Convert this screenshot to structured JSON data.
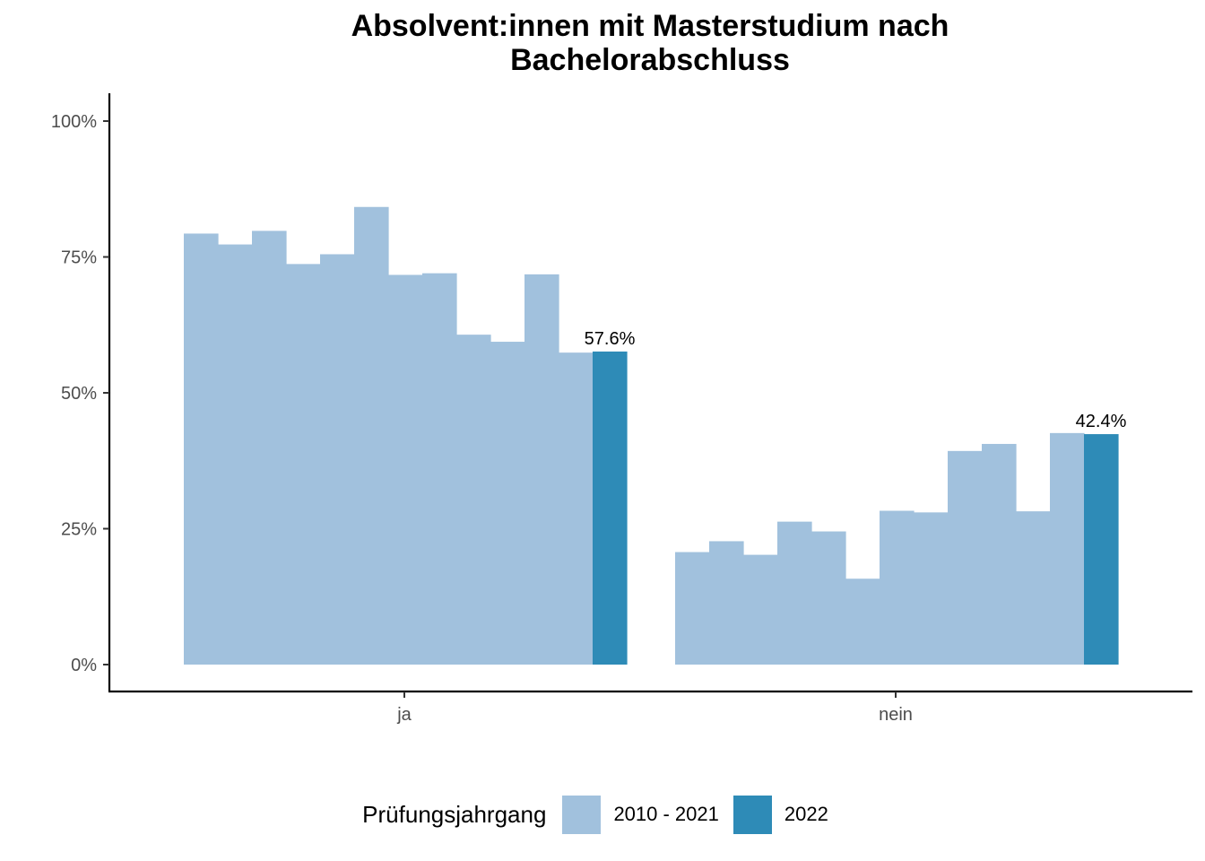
{
  "chart_data": {
    "type": "bar",
    "title_lines": [
      "Absolvent:innen mit Masterstudium nach",
      "Bachelorabschluss"
    ],
    "categories": [
      "ja",
      "nein"
    ],
    "ylim": [
      0,
      100
    ],
    "y_ticks": [
      0,
      25,
      50,
      75,
      100
    ],
    "y_tick_labels": [
      "0%",
      "25%",
      "50%",
      "75%",
      "100%"
    ],
    "series": [
      {
        "name": "2010 - 2021",
        "color": "#a1c1dd",
        "values": {
          "ja": [
            79.3,
            77.3,
            79.8,
            73.7,
            75.5,
            84.2,
            71.7,
            72.0,
            60.7,
            59.4,
            71.8,
            57.4
          ],
          "nein": [
            20.7,
            22.7,
            20.2,
            26.3,
            24.5,
            15.8,
            28.3,
            28.0,
            39.3,
            40.6,
            28.2,
            42.6
          ]
        }
      },
      {
        "name": "2022",
        "color": "#2e8bb7",
        "values": {
          "ja": [
            57.6
          ],
          "nein": [
            42.4
          ]
        }
      }
    ],
    "data_labels": {
      "ja": "57.6%",
      "nein": "42.4%"
    },
    "legend": {
      "title": "Prüfungsjahrgang",
      "position": "bottom"
    },
    "grid": false
  }
}
